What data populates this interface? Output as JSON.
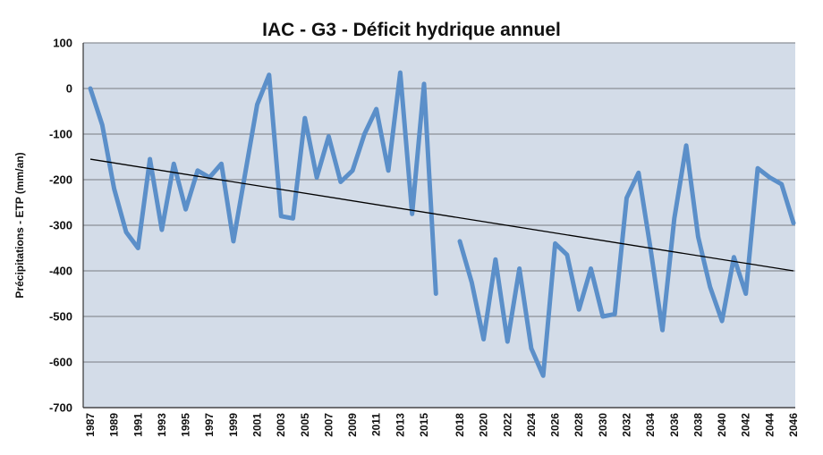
{
  "chart_data": {
    "type": "line",
    "title": "IAC - G3 - Déficit hydrique annuel",
    "ylabel": "Précipitations - ETP (mm/an)",
    "xlabel": "",
    "ylim": [
      -700,
      100
    ],
    "yticks": [
      100,
      0,
      -100,
      -200,
      -300,
      -400,
      -500,
      -600,
      -700
    ],
    "x_tick_labels": [
      "1987",
      "1989",
      "1991",
      "1993",
      "1995",
      "1997",
      "1999",
      "2001",
      "2003",
      "2005",
      "2007",
      "2009",
      "2011",
      "2013",
      "2015",
      "2018",
      "2020",
      "2022",
      "2024",
      "2026",
      "2028",
      "2030",
      "2032",
      "2034",
      "2036",
      "2038",
      "2040",
      "2042",
      "2044",
      "2046"
    ],
    "grid": true,
    "series": [
      {
        "color": "#5b8fc9",
        "segments": [
          {
            "x": [
              1987,
              1988,
              1989,
              1990,
              1991,
              1992,
              1993,
              1994,
              1995,
              1996,
              1997,
              1998,
              1999,
              2000,
              2001,
              2002,
              2003,
              2004,
              2005,
              2006,
              2007,
              2008,
              2009,
              2010,
              2011,
              2012,
              2013,
              2014,
              2015,
              2016
            ],
            "y": [
              0,
              -80,
              -220,
              -315,
              -350,
              -155,
              -310,
              -165,
              -265,
              -180,
              -195,
              -165,
              -335,
              -185,
              -35,
              30,
              -280,
              -285,
              -65,
              -195,
              -105,
              -205,
              -180,
              -100,
              -45,
              -180,
              35,
              -275,
              10,
              -450
            ]
          },
          {
            "x": [
              2018,
              2019,
              2020,
              2021,
              2022,
              2023,
              2024,
              2025,
              2026,
              2027,
              2028,
              2029,
              2030,
              2031,
              2032,
              2033,
              2034,
              2035,
              2036,
              2037,
              2038,
              2039,
              2040,
              2041,
              2042,
              2043,
              2044,
              2045,
              2046
            ],
            "y": [
              -335,
              -425,
              -550,
              -375,
              -555,
              -395,
              -570,
              -630,
              -340,
              -365,
              -485,
              -395,
              -500,
              -495,
              -240,
              -185,
              -350,
              -530,
              -285,
              -125,
              -325,
              -435,
              -510,
              -370,
              -450,
              -175,
              -195,
              -210,
              -295
            ]
          }
        ]
      },
      {
        "color": "#000000",
        "x": [
          1987,
          2046
        ],
        "y": [
          -155,
          -400
        ]
      }
    ]
  }
}
